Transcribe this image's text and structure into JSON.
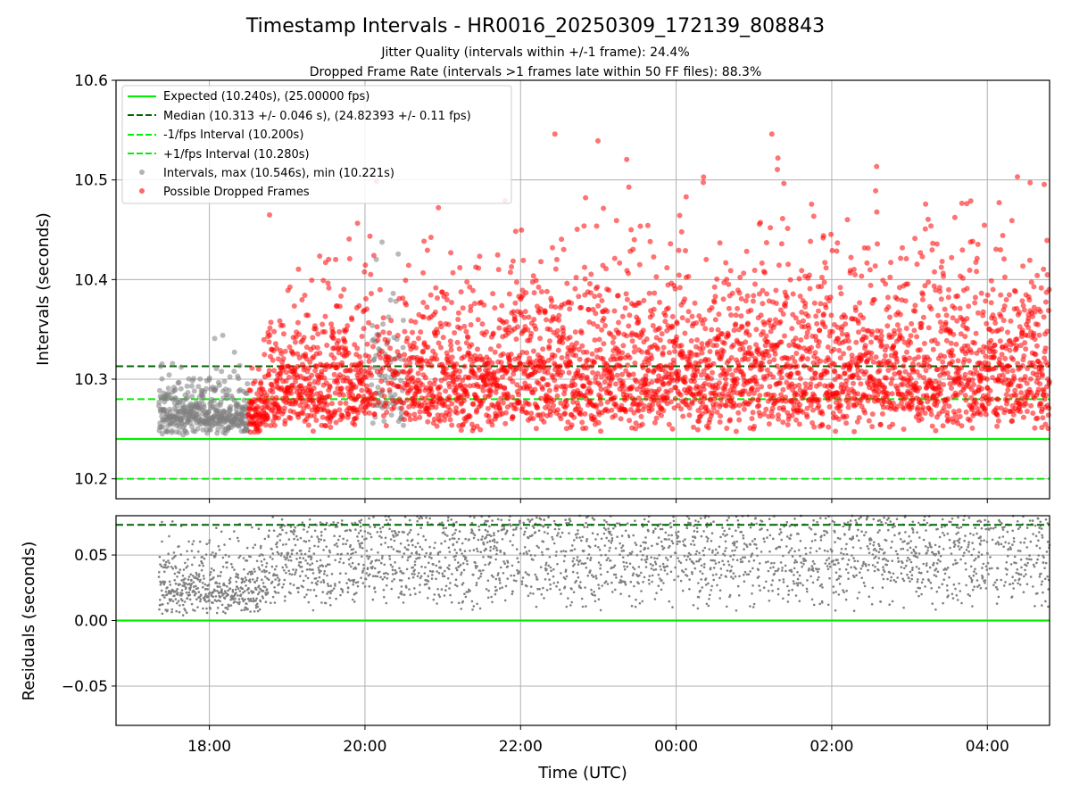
{
  "title": "Timestamp Intervals - HR0016_20250309_172139_808843",
  "subtitle_line1": "Jitter Quality (intervals within +/-1 frame): 24.4%",
  "subtitle_line2": "Dropped Frame Rate (intervals >1 frames late within 50 FF files): 88.3%",
  "colors": {
    "expected": "#00ee00",
    "median": "#006400",
    "fps_interval": "#00ee00",
    "normal_points": "#808080",
    "dropped_points": "#ff0000",
    "grid": "#b0b0b0"
  },
  "chart_data": [
    {
      "type": "scatter",
      "ylabel": "Intervals (seconds)",
      "xlabel": "",
      "xlim": [
        "16:48",
        "04:48"
      ],
      "ylim": [
        10.18,
        10.6
      ],
      "yticks": [
        "10.2",
        "10.3",
        "10.4",
        "10.5",
        "10.6"
      ],
      "xticks": [
        "18:00",
        "20:00",
        "22:00",
        "00:00",
        "02:00",
        "04:00"
      ],
      "grid": true,
      "legend_placement": "top-left",
      "legend": [
        {
          "label": "Expected (10.240s), (25.00000 fps)",
          "style": "solid-line",
          "color": "#00ee00"
        },
        {
          "label": "Median (10.313 +/- 0.046 s), (24.82393 +/- 0.11 fps)",
          "style": "dashed-line",
          "color": "#006400"
        },
        {
          "label": "-1/fps Interval (10.200s)",
          "style": "dashed-line",
          "color": "#00ee00"
        },
        {
          "label": "+1/fps Interval (10.280s)",
          "style": "dashed-line",
          "color": "#00ee00"
        },
        {
          "label": "Intervals, max (10.546s), min (10.221s)",
          "style": "marker",
          "color": "#808080"
        },
        {
          "label": "Possible Dropped Frames",
          "style": "marker",
          "color": "#ff0000"
        }
      ],
      "reference_lines": {
        "expected": 10.24,
        "median": 10.313,
        "minus_fps": 10.2,
        "plus_fps": 10.28
      },
      "series": [
        {
          "name": "Intervals, max (10.546s), min (10.221s)",
          "time_range": [
            "17:21",
            "04:48"
          ],
          "y_min": 10.221,
          "y_max": 10.546
        },
        {
          "name": "Possible Dropped Frames",
          "time_range": [
            "18:30",
            "04:48"
          ],
          "y_min": 10.24,
          "y_max": 10.546
        }
      ]
    },
    {
      "type": "scatter",
      "ylabel": "Residuals (seconds)",
      "xlabel": "Time (UTC)",
      "xlim": [
        "16:48",
        "04:48"
      ],
      "ylim": [
        -0.08,
        0.08
      ],
      "yticks": [
        "0.05",
        "0.00",
        "−0.05"
      ],
      "xticks": [
        "18:00",
        "20:00",
        "22:00",
        "00:00",
        "02:00",
        "04:00"
      ],
      "grid": true,
      "reference_lines": {
        "zero": 0.0,
        "median": 0.073
      },
      "series": [
        {
          "name": "Residuals",
          "time_range": [
            "17:21",
            "04:48"
          ],
          "y_min": -0.019,
          "y_max": 0.08
        }
      ]
    }
  ]
}
